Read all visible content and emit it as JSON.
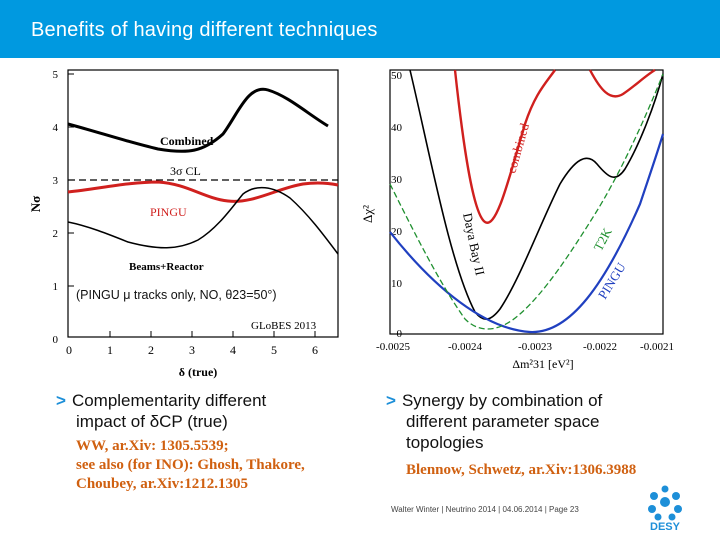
{
  "header": {
    "title": "Benefits of having different techniques"
  },
  "left_chart": {
    "ylabel": "Nσ",
    "xlabel": "δ (true)",
    "yticks": [
      "5",
      "4",
      "3",
      "2",
      "1",
      "0"
    ],
    "xticks": [
      "0",
      "1",
      "2",
      "3",
      "4",
      "5",
      "6"
    ],
    "label_combined": "Combined",
    "label_cl": "3σ CL",
    "label_pingu": "PINGU",
    "label_beams": "Beams+Reactor",
    "label_globes": "GLoBES 2013",
    "note": "(PINGU μ tracks only, NO, θ23=50°)",
    "colors": {
      "pingu": "#d0201e",
      "combined": "#000000"
    }
  },
  "right_chart": {
    "ylabel": "Δχ²",
    "xlabel": "Δm²31 [eV²]",
    "yticks": [
      "50",
      "40",
      "30",
      "20",
      "10",
      "0"
    ],
    "xticks": [
      "-0.0025",
      "-0.0024",
      "-0.0023",
      "-0.0022",
      "-0.0021"
    ],
    "label_combined": "combined",
    "label_dayabay": "Daya Bay II",
    "label_t2k": "T2K",
    "label_pingu": "PINGU",
    "colors": {
      "combined": "#d0201e",
      "pingu": "#2040c0",
      "t2k": "#209030",
      "dayabay": "#000000"
    }
  },
  "bullets": {
    "left_main_1": "Complementarity different",
    "left_main_2": "impact of δCP (true)",
    "left_ref_1": "WW, ar.Xiv: 1305.5539;",
    "left_ref_2": "see also (for INO): Ghosh, Thakore,",
    "left_ref_3": "Choubey, ar.Xiv:1212.1305",
    "right_main_1": "Synergy by combination of",
    "right_main_2": "different parameter space",
    "right_main_3": "topologies",
    "right_ref_1": "Blennow, Schwetz, ar.Xiv:1306.3988"
  },
  "footer": {
    "text": "Walter Winter  |  Neutrino 2014 |  04.06.2014  |  Page 23"
  },
  "logo": {
    "text": "DESY"
  }
}
